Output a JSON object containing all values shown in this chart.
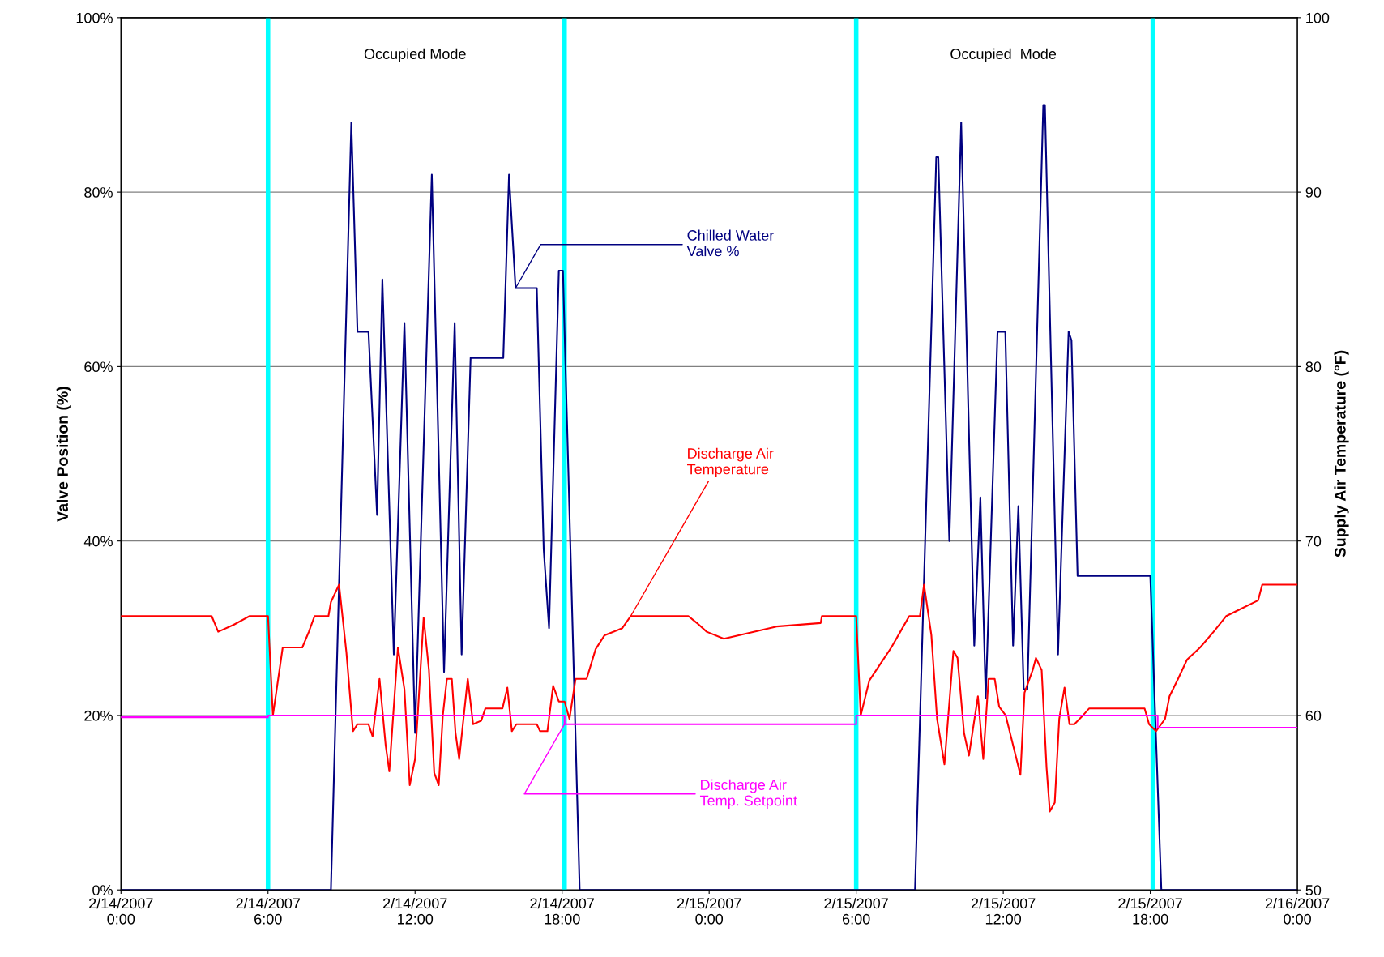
{
  "chart_data": {
    "type": "line",
    "xlim": [
      "2007-02-14T00:00",
      "2007-02-16T00:00"
    ],
    "xticks": [
      {
        "value": "2007-02-14T00:00",
        "label": "2/14/2007\n0:00"
      },
      {
        "value": "2007-02-14T06:00",
        "label": "2/14/2007\n6:00"
      },
      {
        "value": "2007-02-14T12:00",
        "label": "2/14/2007\n12:00"
      },
      {
        "value": "2007-02-14T18:00",
        "label": "2/14/2007\n18:00"
      },
      {
        "value": "2007-02-15T00:00",
        "label": "2/15/2007\n0:00"
      },
      {
        "value": "2007-02-15T06:00",
        "label": "2/15/2007\n6:00"
      },
      {
        "value": "2007-02-15T12:00",
        "label": "2/15/2007\n12:00"
      },
      {
        "value": "2007-02-15T18:00",
        "label": "2/15/2007\n18:00"
      },
      {
        "value": "2007-02-16T00:00",
        "label": "2/16/2007\n0:00"
      }
    ],
    "ylim": [
      0,
      100
    ],
    "yticks": [
      {
        "value": 0,
        "label": "0%"
      },
      {
        "value": 20,
        "label": "20%"
      },
      {
        "value": 40,
        "label": "40%"
      },
      {
        "value": 60,
        "label": "60%"
      },
      {
        "value": 80,
        "label": "80%"
      },
      {
        "value": 100,
        "label": "100%"
      }
    ],
    "y2lim": [
      50,
      100
    ],
    "y2ticks": [
      50,
      60,
      70,
      80,
      90,
      100
    ],
    "ylabel": "Valve Position (%)",
    "y2label": "Supply Air Temperature (°F)",
    "grid": "y",
    "legend": false,
    "ref_lines": [
      {
        "axis": "x",
        "value": "2007-02-14T06:00",
        "color": "#00ffff"
      },
      {
        "axis": "x",
        "value": "2007-02-14T18:06",
        "color": "#00ffff"
      },
      {
        "axis": "x",
        "value": "2007-02-15T06:00",
        "color": "#00ffff"
      },
      {
        "axis": "x",
        "value": "2007-02-15T18:06",
        "color": "#00ffff"
      }
    ],
    "annotations": [
      "Occupied Mode",
      "Occupied  Mode"
    ],
    "series": [
      {
        "name": "Chilled Water\nValve %",
        "color": "#000080",
        "x": [
          "2007-02-14T00:00",
          "2007-02-14T08:34",
          "2007-02-14T09:24",
          "2007-02-14T09:39",
          "2007-02-14T10:06",
          "2007-02-14T10:27",
          "2007-02-14T10:40",
          "2007-02-14T11:08",
          "2007-02-14T11:34",
          "2007-02-14T12:00",
          "2007-02-14T12:41",
          "2007-02-14T13:11",
          "2007-02-14T13:37",
          "2007-02-14T13:54",
          "2007-02-14T14:16",
          "2007-02-14T15:36",
          "2007-02-14T15:50",
          "2007-02-14T16:06",
          "2007-02-14T16:58",
          "2007-02-14T17:15",
          "2007-02-14T17:28",
          "2007-02-14T17:52",
          "2007-02-14T18:02",
          "2007-02-14T18:43",
          "2007-02-15T08:24",
          "2007-02-15T09:16",
          "2007-02-15T09:21",
          "2007-02-15T09:48",
          "2007-02-15T10:17",
          "2007-02-15T10:49",
          "2007-02-15T11:04",
          "2007-02-15T11:17",
          "2007-02-15T11:46",
          "2007-02-15T12:05",
          "2007-02-15T12:24",
          "2007-02-15T12:37",
          "2007-02-15T12:50",
          "2007-02-15T12:59",
          "2007-02-15T13:38",
          "2007-02-15T13:42",
          "2007-02-15T14:14",
          "2007-02-15T14:40",
          "2007-02-15T14:47",
          "2007-02-15T15:02",
          "2007-02-15T18:00",
          "2007-02-15T18:27",
          "2007-02-16T00:00"
        ],
        "values": [
          0,
          0,
          88,
          64,
          64,
          43,
          70,
          27,
          65,
          18,
          82,
          25,
          65,
          27,
          61,
          61,
          82,
          69,
          69,
          39,
          30,
          71,
          71,
          0,
          0,
          84,
          84,
          40,
          88,
          28,
          45,
          22,
          64,
          64,
          28,
          44,
          23,
          23,
          90,
          90,
          27,
          64,
          63,
          36,
          36,
          0,
          0
        ]
      },
      {
        "name": "Discharge Air\nTemperature",
        "color": "#ff0000",
        "axis": "y2",
        "x": [
          "2007-02-14T00:00",
          "2007-02-14T03:42",
          "2007-02-14T03:58",
          "2007-02-14T04:36",
          "2007-02-14T05:15",
          "2007-02-14T06:00",
          "2007-02-14T06:12",
          "2007-02-14T06:36",
          "2007-02-14T07:24",
          "2007-02-14T07:40",
          "2007-02-14T07:54",
          "2007-02-14T08:28",
          "2007-02-14T08:34",
          "2007-02-14T08:54",
          "2007-02-14T09:12",
          "2007-02-14T09:28",
          "2007-02-14T09:39",
          "2007-02-14T10:06",
          "2007-02-14T10:16",
          "2007-02-14T10:33",
          "2007-02-14T10:48",
          "2007-02-14T10:57",
          "2007-02-14T11:18",
          "2007-02-14T11:34",
          "2007-02-14T11:47",
          "2007-02-14T12:00",
          "2007-02-14T12:21",
          "2007-02-14T12:34",
          "2007-02-14T12:47",
          "2007-02-14T12:58",
          "2007-02-14T13:08",
          "2007-02-14T13:18",
          "2007-02-14T13:30",
          "2007-02-14T13:39",
          "2007-02-14T13:48",
          "2007-02-14T14:09",
          "2007-02-14T14:22",
          "2007-02-14T14:42",
          "2007-02-14T14:52",
          "2007-02-14T15:34",
          "2007-02-14T15:46",
          "2007-02-14T15:57",
          "2007-02-14T16:08",
          "2007-02-14T16:58",
          "2007-02-14T17:06",
          "2007-02-14T17:24",
          "2007-02-14T17:38",
          "2007-02-14T17:52",
          "2007-02-14T18:06",
          "2007-02-14T18:18",
          "2007-02-14T18:33",
          "2007-02-14T19:00",
          "2007-02-14T19:22",
          "2007-02-14T19:44",
          "2007-02-14T20:27",
          "2007-02-14T20:48",
          "2007-02-14T23:09",
          "2007-02-14T23:30",
          "2007-02-14T23:54",
          "2007-02-15T00:36",
          "2007-02-15T02:45",
          "2007-02-15T04:33",
          "2007-02-15T04:36",
          "2007-02-15T06:00",
          "2007-02-15T06:11",
          "2007-02-15T06:32",
          "2007-02-15T07:06",
          "2007-02-15T07:26",
          "2007-02-15T07:48",
          "2007-02-15T08:10",
          "2007-02-15T08:36",
          "2007-02-15T08:46",
          "2007-02-15T09:04",
          "2007-02-15T09:18",
          "2007-02-15T09:36",
          "2007-02-15T09:58",
          "2007-02-15T10:08",
          "2007-02-15T10:24",
          "2007-02-15T10:36",
          "2007-02-15T10:58",
          "2007-02-15T11:11",
          "2007-02-15T11:24",
          "2007-02-15T11:39",
          "2007-02-15T11:50",
          "2007-02-15T12:06",
          "2007-02-15T12:42",
          "2007-02-15T12:52",
          "2007-02-15T13:12",
          "2007-02-15T13:20",
          "2007-02-15T13:34",
          "2007-02-15T13:46",
          "2007-02-15T13:54",
          "2007-02-15T14:06",
          "2007-02-15T14:17",
          "2007-02-15T14:30",
          "2007-02-15T14:42",
          "2007-02-15T14:54",
          "2007-02-15T15:11",
          "2007-02-15T15:30",
          "2007-02-15T17:46",
          "2007-02-15T17:57",
          "2007-02-15T18:14",
          "2007-02-15T18:36",
          "2007-02-15T18:47",
          "2007-02-15T19:08",
          "2007-02-15T19:30",
          "2007-02-15T20:02",
          "2007-02-15T20:35",
          "2007-02-15T21:06",
          "2007-02-15T22:24",
          "2007-02-15T22:34",
          "2007-02-16T00:00"
        ],
        "values": [
          65.7,
          65.7,
          64.8,
          65.2,
          65.7,
          65.7,
          60.0,
          63.9,
          63.9,
          64.8,
          65.7,
          65.7,
          66.5,
          67.5,
          63.6,
          59.1,
          59.5,
          59.5,
          58.8,
          62.1,
          58.3,
          56.8,
          63.9,
          61.5,
          56.0,
          57.5,
          65.6,
          62.6,
          56.7,
          56.0,
          60.0,
          62.1,
          62.1,
          59.0,
          57.5,
          62.1,
          59.5,
          59.7,
          60.4,
          60.4,
          61.6,
          59.1,
          59.5,
          59.5,
          59.1,
          59.1,
          61.7,
          60.8,
          60.8,
          59.8,
          62.1,
          62.1,
          63.8,
          64.6,
          65.0,
          65.7,
          65.7,
          65.3,
          64.8,
          64.4,
          65.1,
          65.3,
          65.7,
          65.7,
          60.0,
          62.0,
          63.2,
          63.9,
          64.8,
          65.7,
          65.7,
          67.5,
          64.6,
          59.8,
          57.2,
          63.7,
          63.3,
          59.0,
          57.7,
          61.1,
          57.5,
          62.1,
          62.1,
          60.5,
          60.0,
          56.6,
          61.3,
          62.6,
          63.3,
          62.6,
          57.0,
          54.5,
          55.0,
          59.8,
          61.6,
          59.5,
          59.5,
          59.9,
          60.4,
          60.4,
          59.5,
          59.1,
          59.8,
          61.1,
          62.1,
          63.2,
          63.9,
          64.8,
          65.7,
          66.6,
          67.5,
          67.5
        ]
      },
      {
        "name": "Discharge Air\nTemp. Setpoint",
        "color": "#ff00ff",
        "axis": "y2",
        "x": [
          "2007-02-14T00:00",
          "2007-02-14T06:00",
          "2007-02-14T06:00",
          "2007-02-14T18:06",
          "2007-02-14T18:06",
          "2007-02-15T06:00",
          "2007-02-15T06:00",
          "2007-02-15T18:18",
          "2007-02-15T18:18",
          "2007-02-16T00:00"
        ],
        "values": [
          59.9,
          59.9,
          60.0,
          60.0,
          59.5,
          59.5,
          60.0,
          60.0,
          59.3,
          59.3
        ]
      }
    ]
  }
}
